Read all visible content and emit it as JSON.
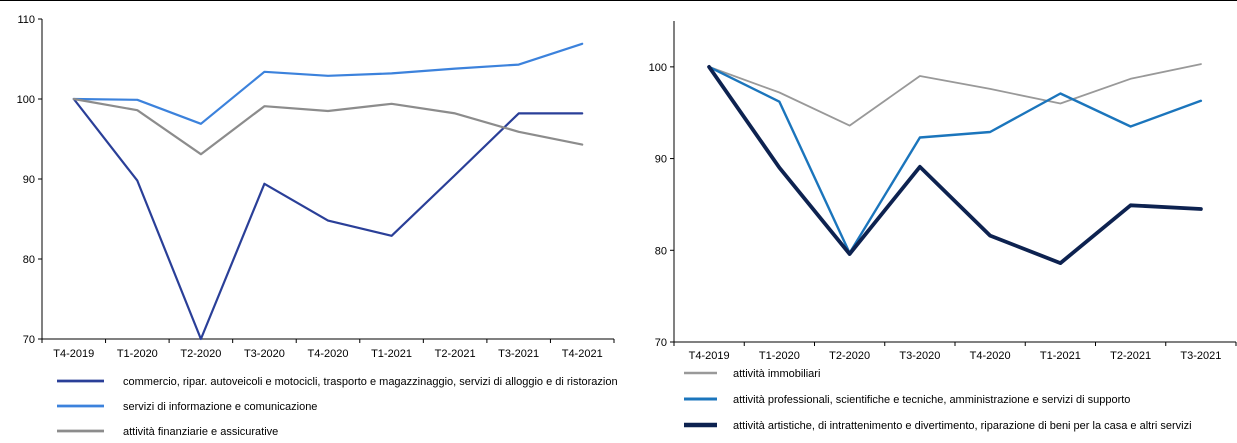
{
  "chart_data": [
    {
      "type": "line",
      "title": "",
      "xlabel": "",
      "ylabel": "",
      "categories": [
        "T4-2019",
        "T1-2020",
        "T2-2020",
        "T3-2020",
        "T4-2020",
        "T1-2021",
        "T2-2021",
        "T3-2021",
        "T4-2021"
      ],
      "ylim": [
        70,
        110
      ],
      "yticks": [
        "70",
        "80",
        "90",
        "100",
        "110"
      ],
      "grid": false,
      "legend": "bottom",
      "series": [
        {
          "name": "commercio, ripar. autoveicoli e motocicli, trasporto e magazzinaggio, servizi di alloggio e di ristorazione",
          "color": "#2a3f98",
          "values": [
            100,
            89.8,
            70.0,
            89.4,
            84.8,
            82.9,
            90.5,
            98.2,
            98.2
          ]
        },
        {
          "name": "servizi di informazione e comunicazione",
          "color": "#3c82dc",
          "values": [
            100,
            99.9,
            96.9,
            103.4,
            102.9,
            103.2,
            103.8,
            104.3,
            106.9
          ]
        },
        {
          "name": "attività finanziarie e assicurative",
          "color": "#8c8c8c",
          "values": [
            100,
            98.6,
            93.1,
            99.1,
            98.5,
            99.4,
            98.2,
            95.9,
            94.3
          ]
        }
      ]
    },
    {
      "type": "line",
      "title": "",
      "xlabel": "",
      "ylabel": "",
      "categories": [
        "T4-2019",
        "T1-2020",
        "T2-2020",
        "T3-2020",
        "T4-2020",
        "T1-2021",
        "T2-2021",
        "T3-2021"
      ],
      "ylim": [
        70,
        105
      ],
      "yticks": [
        "70",
        "80",
        "90",
        "100"
      ],
      "grid": false,
      "legend": "bottom",
      "series": [
        {
          "name": "attività immobiliari",
          "color": "#999999",
          "values": [
            100,
            97.2,
            93.6,
            99.0,
            97.6,
            96.0,
            98.7,
            100.3
          ]
        },
        {
          "name": "attività professionali, scientifiche e tecniche, amministrazione e servizi di supporto",
          "color": "#1b75bc",
          "values": [
            100,
            96.2,
            79.7,
            92.3,
            92.9,
            97.1,
            93.5,
            96.3
          ]
        },
        {
          "name": "attività artistiche, di intrattenimento e divertimento, riparazione di beni per la casa e altri servizi",
          "color": "#0d2250",
          "values": [
            100,
            89.0,
            79.6,
            89.1,
            81.6,
            78.6,
            84.9,
            84.5
          ]
        }
      ]
    }
  ]
}
